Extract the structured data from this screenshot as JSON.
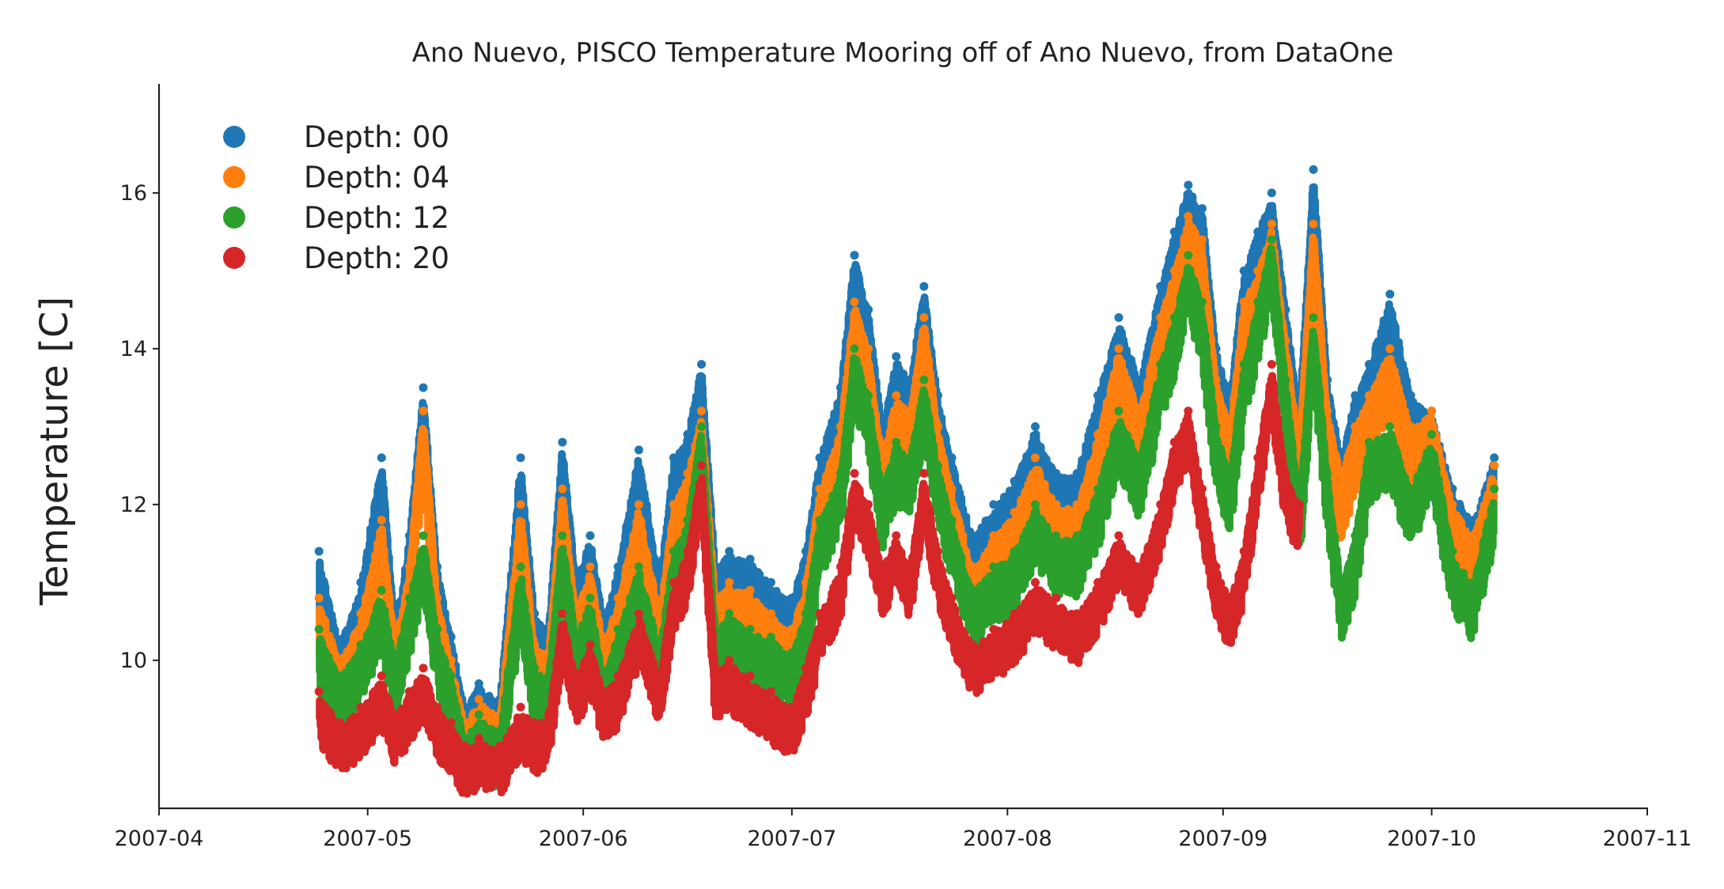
{
  "chart_data": {
    "type": "scatter",
    "title": "Ano Nuevo, PISCO Temperature Mooring off of Ano Nuevo, from DataOne",
    "xlabel": "",
    "ylabel": "Temperature [C]",
    "x_axis_type": "date",
    "xlim": [
      "2007-04-01",
      "2007-11-01"
    ],
    "ylim": [
      8.1,
      17.4
    ],
    "x_ticks": [
      "2007-04-01",
      "2007-05-01",
      "2007-06-01",
      "2007-07-01",
      "2007-08-01",
      "2007-09-01",
      "2007-10-01",
      "2007-11-01"
    ],
    "x_tick_labels": [
      "2007-04",
      "2007-05",
      "2007-06",
      "2007-07",
      "2007-08",
      "2007-09",
      "2007-10",
      "2007-11"
    ],
    "y_ticks": [
      10,
      12,
      14,
      16
    ],
    "y_tick_labels": [
      "10",
      "12",
      "14",
      "16"
    ],
    "grid": false,
    "legend_position": "top-left",
    "series": [
      {
        "name": "Depth: 00",
        "color": "#1f77b4",
        "x": [
          "2007-04-24",
          "2007-04-27",
          "2007-04-30",
          "2007-05-03",
          "2007-05-05",
          "2007-05-07",
          "2007-05-09",
          "2007-05-11",
          "2007-05-13",
          "2007-05-15",
          "2007-05-17",
          "2007-05-20",
          "2007-05-23",
          "2007-05-25",
          "2007-05-27",
          "2007-05-29",
          "2007-05-31",
          "2007-06-02",
          "2007-06-04",
          "2007-06-06",
          "2007-06-09",
          "2007-06-12",
          "2007-06-14",
          "2007-06-16",
          "2007-06-18",
          "2007-06-20",
          "2007-06-22",
          "2007-06-25",
          "2007-06-28",
          "2007-07-01",
          "2007-07-03",
          "2007-07-05",
          "2007-07-08",
          "2007-07-10",
          "2007-07-12",
          "2007-07-14",
          "2007-07-16",
          "2007-07-18",
          "2007-07-20",
          "2007-07-22",
          "2007-07-24",
          "2007-07-27",
          "2007-07-30",
          "2007-08-02",
          "2007-08-05",
          "2007-08-08",
          "2007-08-11",
          "2007-08-14",
          "2007-08-17",
          "2007-08-20",
          "2007-08-23",
          "2007-08-25",
          "2007-08-27",
          "2007-08-29",
          "2007-08-31",
          "2007-09-02",
          "2007-09-04",
          "2007-09-06",
          "2007-09-08",
          "2007-09-10",
          "2007-09-12",
          "2007-09-14",
          "2007-09-16",
          "2007-09-18",
          "2007-09-20",
          "2007-09-22",
          "2007-09-25",
          "2007-09-28",
          "2007-10-01",
          "2007-10-04",
          "2007-10-07",
          "2007-10-10"
        ],
        "values": [
          11.4,
          10.2,
          11.0,
          12.6,
          10.4,
          11.6,
          13.5,
          11.2,
          10.3,
          9.4,
          9.7,
          9.5,
          12.6,
          10.6,
          10.4,
          12.8,
          11.0,
          11.6,
          10.5,
          11.2,
          12.7,
          11.0,
          12.6,
          12.9,
          13.8,
          11.2,
          11.4,
          11.3,
          11.0,
          10.8,
          11.4,
          12.6,
          13.5,
          15.2,
          14.5,
          13.0,
          13.9,
          13.6,
          14.8,
          13.4,
          12.6,
          11.6,
          12.0,
          12.3,
          13.0,
          12.4,
          12.4,
          13.4,
          14.4,
          13.6,
          14.8,
          15.5,
          16.1,
          15.8,
          14.0,
          13.4,
          15.0,
          15.5,
          16.0,
          14.5,
          13.2,
          16.3,
          13.6,
          12.6,
          13.4,
          13.8,
          14.7,
          13.4,
          13.2,
          12.2,
          11.8,
          12.6
        ]
      },
      {
        "name": "Depth: 04",
        "color": "#ff7f0e",
        "x": [
          "2007-04-24",
          "2007-04-27",
          "2007-04-30",
          "2007-05-03",
          "2007-05-05",
          "2007-05-07",
          "2007-05-09",
          "2007-05-11",
          "2007-05-13",
          "2007-05-15",
          "2007-05-17",
          "2007-05-20",
          "2007-05-23",
          "2007-05-25",
          "2007-05-27",
          "2007-05-29",
          "2007-05-31",
          "2007-06-02",
          "2007-06-04",
          "2007-06-06",
          "2007-06-09",
          "2007-06-12",
          "2007-06-14",
          "2007-06-16",
          "2007-06-18",
          "2007-06-20",
          "2007-06-22",
          "2007-06-25",
          "2007-06-28",
          "2007-07-01",
          "2007-07-03",
          "2007-07-05",
          "2007-07-08",
          "2007-07-10",
          "2007-07-12",
          "2007-07-14",
          "2007-07-16",
          "2007-07-18",
          "2007-07-20",
          "2007-07-22",
          "2007-07-24",
          "2007-07-27",
          "2007-07-30",
          "2007-08-02",
          "2007-08-05",
          "2007-08-08",
          "2007-08-11",
          "2007-08-14",
          "2007-08-17",
          "2007-08-20",
          "2007-08-23",
          "2007-08-25",
          "2007-08-27",
          "2007-08-29",
          "2007-08-31",
          "2007-09-02",
          "2007-09-04",
          "2007-09-06",
          "2007-09-08",
          "2007-09-10",
          "2007-09-12",
          "2007-09-14",
          "2007-09-16",
          "2007-09-18",
          "2007-09-20",
          "2007-09-22",
          "2007-09-25",
          "2007-09-28",
          "2007-10-01",
          "2007-10-04",
          "2007-10-07",
          "2007-10-10"
        ],
        "values": [
          10.8,
          10.0,
          10.6,
          11.8,
          10.2,
          11.2,
          13.2,
          10.8,
          10.0,
          9.2,
          9.5,
          9.3,
          12.0,
          10.2,
          10.1,
          12.2,
          10.6,
          11.2,
          10.2,
          10.8,
          12.0,
          10.6,
          12.0,
          12.4,
          13.2,
          10.8,
          11.0,
          10.9,
          10.6,
          10.4,
          11.0,
          12.2,
          13.0,
          14.6,
          14.0,
          12.6,
          13.4,
          13.2,
          14.4,
          13.0,
          12.2,
          11.2,
          11.6,
          11.9,
          12.6,
          12.0,
          12.0,
          12.9,
          14.0,
          13.2,
          14.4,
          15.0,
          15.7,
          15.4,
          13.6,
          13.0,
          14.6,
          15.0,
          15.6,
          14.1,
          12.8,
          15.6,
          13.2,
          12.4,
          13.0,
          13.4,
          14.0,
          13.0,
          13.2,
          12.0,
          11.6,
          12.5
        ]
      },
      {
        "name": "Depth: 12",
        "color": "#2ca02c",
        "x": [
          "2007-04-24",
          "2007-04-27",
          "2007-04-30",
          "2007-05-03",
          "2007-05-05",
          "2007-05-07",
          "2007-05-09",
          "2007-05-11",
          "2007-05-13",
          "2007-05-15",
          "2007-05-17",
          "2007-05-20",
          "2007-05-23",
          "2007-05-25",
          "2007-05-27",
          "2007-05-29",
          "2007-05-31",
          "2007-06-02",
          "2007-06-04",
          "2007-06-06",
          "2007-06-09",
          "2007-06-12",
          "2007-06-14",
          "2007-06-16",
          "2007-06-18",
          "2007-06-20",
          "2007-06-22",
          "2007-06-25",
          "2007-06-28",
          "2007-07-01",
          "2007-07-03",
          "2007-07-05",
          "2007-07-08",
          "2007-07-10",
          "2007-07-12",
          "2007-07-14",
          "2007-07-16",
          "2007-07-18",
          "2007-07-20",
          "2007-07-22",
          "2007-07-24",
          "2007-07-27",
          "2007-07-30",
          "2007-08-02",
          "2007-08-05",
          "2007-08-08",
          "2007-08-11",
          "2007-08-14",
          "2007-08-17",
          "2007-08-20",
          "2007-08-23",
          "2007-08-25",
          "2007-08-27",
          "2007-08-29",
          "2007-08-31",
          "2007-09-02",
          "2007-09-04",
          "2007-09-06",
          "2007-09-08",
          "2007-09-10",
          "2007-09-12",
          "2007-09-14",
          "2007-09-16",
          "2007-09-18",
          "2007-09-20",
          "2007-09-22",
          "2007-09-25",
          "2007-09-28",
          "2007-10-01",
          "2007-10-04",
          "2007-10-07",
          "2007-10-10"
        ],
        "values": [
          10.4,
          9.8,
          10.2,
          10.9,
          10.0,
          10.8,
          11.6,
          10.4,
          9.8,
          9.0,
          9.3,
          9.1,
          11.2,
          9.9,
          9.8,
          11.6,
          10.3,
          10.8,
          9.8,
          10.4,
          11.2,
          10.2,
          11.4,
          11.8,
          13.0,
          10.4,
          10.6,
          10.4,
          10.3,
          10.1,
          10.6,
          11.8,
          12.4,
          14.0,
          13.4,
          12.2,
          12.8,
          12.6,
          13.6,
          12.5,
          11.8,
          10.9,
          11.2,
          11.4,
          12.0,
          11.6,
          11.6,
          12.2,
          13.2,
          12.6,
          13.8,
          14.4,
          15.2,
          14.6,
          13.0,
          12.4,
          13.8,
          14.6,
          15.4,
          13.6,
          12.0,
          14.4,
          12.4,
          11.0,
          11.6,
          12.8,
          13.0,
          12.2,
          12.9,
          11.4,
          11.0,
          12.2
        ]
      },
      {
        "name": "Depth: 20",
        "color": "#d62728",
        "x": [
          "2007-04-24",
          "2007-04-27",
          "2007-04-30",
          "2007-05-03",
          "2007-05-05",
          "2007-05-07",
          "2007-05-09",
          "2007-05-11",
          "2007-05-13",
          "2007-05-15",
          "2007-05-17",
          "2007-05-20",
          "2007-05-23",
          "2007-05-25",
          "2007-05-27",
          "2007-05-29",
          "2007-05-31",
          "2007-06-02",
          "2007-06-04",
          "2007-06-06",
          "2007-06-09",
          "2007-06-12",
          "2007-06-14",
          "2007-06-16",
          "2007-06-18",
          "2007-06-20",
          "2007-06-22",
          "2007-06-25",
          "2007-06-28",
          "2007-07-01",
          "2007-07-03",
          "2007-07-05",
          "2007-07-08",
          "2007-07-10",
          "2007-07-12",
          "2007-07-14",
          "2007-07-16",
          "2007-07-18",
          "2007-07-20",
          "2007-07-22",
          "2007-07-24",
          "2007-07-27",
          "2007-07-30",
          "2007-08-02",
          "2007-08-05",
          "2007-08-08",
          "2007-08-11",
          "2007-08-14",
          "2007-08-17",
          "2007-08-20",
          "2007-08-23",
          "2007-08-25",
          "2007-08-27",
          "2007-08-29",
          "2007-08-31",
          "2007-09-02",
          "2007-09-04",
          "2007-09-06",
          "2007-09-08",
          "2007-09-10",
          "2007-09-12"
        ],
        "values": [
          9.6,
          9.2,
          9.4,
          9.8,
          9.3,
          9.6,
          9.9,
          9.4,
          9.2,
          8.9,
          9.0,
          8.9,
          9.4,
          9.2,
          9.3,
          10.6,
          9.8,
          10.2,
          9.6,
          9.8,
          10.6,
          9.8,
          11.0,
          11.4,
          12.5,
          9.9,
          10.0,
          9.8,
          9.6,
          9.4,
          9.9,
          10.6,
          11.2,
          12.4,
          12.0,
          11.2,
          11.6,
          11.2,
          12.4,
          11.4,
          10.8,
          10.2,
          10.4,
          10.6,
          11.0,
          10.8,
          10.6,
          11.0,
          11.6,
          11.2,
          12.0,
          12.8,
          13.2,
          12.2,
          11.2,
          10.8,
          11.4,
          12.6,
          13.8,
          12.4,
          12.0
        ]
      }
    ]
  }
}
